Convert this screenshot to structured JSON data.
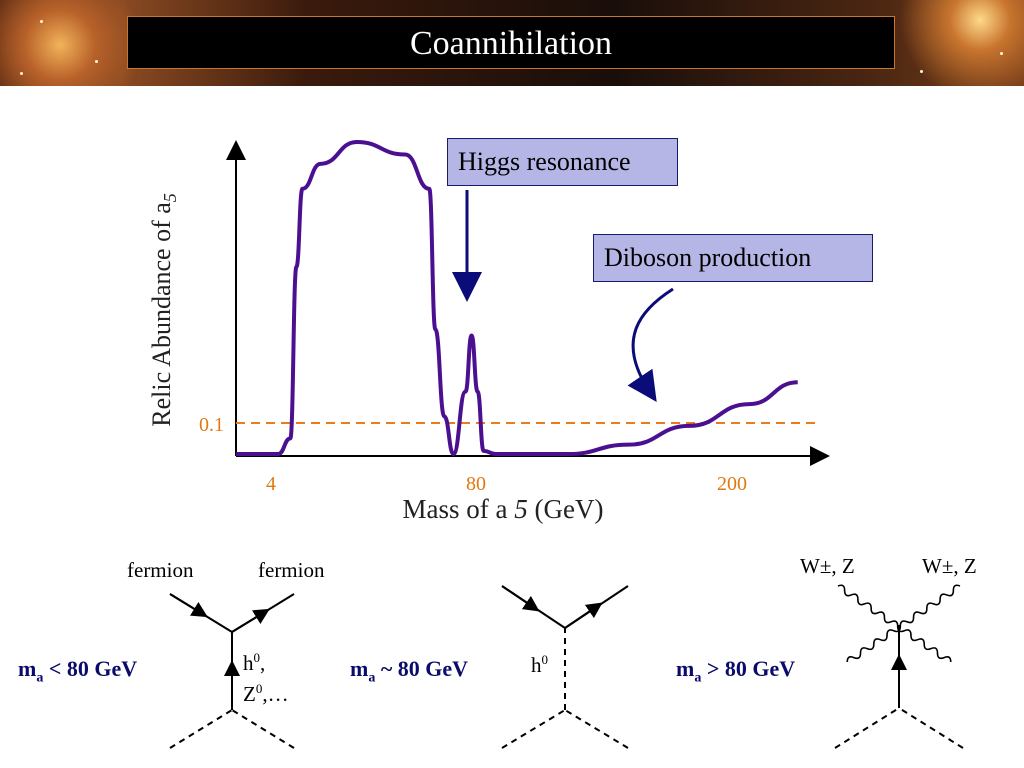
{
  "slide": {
    "title": "Coannihilation"
  },
  "chart_data": {
    "type": "line",
    "ylabel": "Relic Abundance of a",
    "ylabel_sub": "5",
    "xlabel": "Mass of a",
    "xlabel_sub": "5",
    "xlabel_unit": "(GeV)",
    "xticks": [
      "4",
      "80",
      "200"
    ],
    "yticks": [
      "0.1"
    ],
    "reference_line": {
      "y_label": "0.1",
      "color": "#ee7a1a",
      "style": "dashed"
    },
    "series": [
      {
        "color": "#4b1090",
        "points": [
          [
            0.0,
            0.0
          ],
          [
            0.04,
            0.0
          ],
          [
            0.07,
            0.0
          ],
          [
            0.09,
            0.05
          ],
          [
            0.1,
            0.6
          ],
          [
            0.11,
            0.85
          ],
          [
            0.14,
            0.93
          ],
          [
            0.2,
            1.0
          ],
          [
            0.28,
            0.96
          ],
          [
            0.32,
            0.85
          ],
          [
            0.33,
            0.4
          ],
          [
            0.345,
            0.12
          ],
          [
            0.36,
            0.0
          ],
          [
            0.38,
            0.2
          ],
          [
            0.39,
            0.38
          ],
          [
            0.4,
            0.2
          ],
          [
            0.41,
            0.01
          ],
          [
            0.43,
            0.0
          ],
          [
            0.55,
            0.0
          ],
          [
            0.65,
            0.03
          ],
          [
            0.75,
            0.09
          ],
          [
            0.85,
            0.16
          ],
          [
            0.93,
            0.23
          ]
        ]
      }
    ],
    "x_scale": "arbitrary"
  },
  "callouts": {
    "higgs": "Higgs resonance",
    "diboson": "Diboson production"
  },
  "diagrams": [
    {
      "condition_prefix": "m",
      "condition_sub": "a",
      "condition_suffix": " < 80 GeV",
      "top_left": "fermion",
      "top_right": "fermion",
      "mediator_line1": "h",
      "mediator_sup1": "0",
      "mediator_line1_tail": ",",
      "mediator_line2": "Z",
      "mediator_sup2": "0",
      "mediator_line2_tail": ",…"
    },
    {
      "condition_prefix": "m",
      "condition_sub": "a",
      "condition_suffix": " ~ 80 GeV",
      "mediator_line1": "h",
      "mediator_sup1": "0"
    },
    {
      "condition_prefix": "m",
      "condition_sub": "a",
      "condition_suffix": " > 80 GeV",
      "top_left": "W±, Z",
      "top_right": "W±, Z"
    }
  ],
  "colors": {
    "curve": "#4b1090",
    "reference": "#ee7a1a",
    "tick_labels": "#e07a10",
    "callout_fill": "#b6b6e6",
    "arrow": "#0b0b7a",
    "condition_text": "#0b0b6b"
  }
}
